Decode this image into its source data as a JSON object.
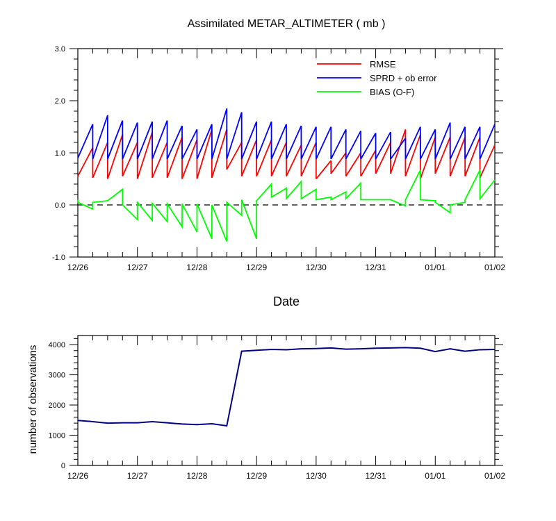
{
  "chart_data": [
    {
      "type": "line",
      "title": "Assimilated METAR_ALTIMETER ( mb )",
      "xlabel": "Date",
      "ylabel": "",
      "xlim": [
        0,
        7
      ],
      "ylim": [
        -1.0,
        3.0
      ],
      "x_tick_labels": [
        "12/26",
        "12/27",
        "12/28",
        "12/29",
        "12/30",
        "12/31",
        "01/01",
        "01/02"
      ],
      "y_tick_labels": [
        "-1.0",
        "0.0",
        "1.0",
        "2.0",
        "3.0"
      ],
      "reference_line_y": 0.0,
      "legend_placement": "top-right",
      "series": [
        {
          "name": "RMSE",
          "color": "#ff0000",
          "segments": [
            [
              0,
              0.55,
              0.25,
              1.1
            ],
            [
              0.25,
              0.52,
              0.5,
              1.2
            ],
            [
              0.5,
              0.5,
              0.75,
              1.35
            ],
            [
              0.75,
              0.55,
              1.0,
              1.2
            ],
            [
              1.0,
              0.5,
              1.25,
              1.4
            ],
            [
              1.25,
              0.52,
              1.5,
              1.2
            ],
            [
              1.5,
              0.52,
              1.75,
              1.3
            ],
            [
              1.75,
              0.5,
              2.0,
              1.25
            ],
            [
              2.0,
              0.5,
              2.25,
              1.45
            ],
            [
              2.25,
              0.52,
              2.5,
              1.45
            ],
            [
              2.5,
              0.68,
              2.75,
              1.2
            ],
            [
              2.75,
              0.55,
              3.0,
              1.25
            ],
            [
              3.0,
              0.55,
              3.25,
              1.25
            ],
            [
              3.25,
              0.55,
              3.5,
              1.2
            ],
            [
              3.5,
              0.55,
              3.75,
              1.15
            ],
            [
              3.75,
              0.55,
              4.0,
              1.2
            ],
            [
              4.0,
              0.5,
              4.25,
              0.85
            ],
            [
              4.25,
              0.6,
              4.5,
              1.0
            ],
            [
              4.5,
              0.55,
              4.75,
              1.0
            ],
            [
              4.75,
              0.55,
              5.0,
              1.05
            ],
            [
              5.0,
              0.6,
              5.25,
              1.2
            ],
            [
              5.25,
              0.6,
              5.5,
              1.45
            ],
            [
              5.5,
              0.55,
              5.75,
              1.35
            ],
            [
              5.75,
              0.5,
              6.0,
              1.3
            ],
            [
              6.0,
              0.6,
              6.25,
              1.3
            ],
            [
              6.25,
              0.55,
              6.5,
              1.3
            ],
            [
              6.5,
              0.55,
              6.75,
              1.3
            ],
            [
              6.75,
              0.52,
              7.0,
              1.15
            ]
          ]
        },
        {
          "name": "SPRD + ob error",
          "color": "#0000ff",
          "segments": [
            [
              0,
              0.9,
              0.25,
              1.55
            ],
            [
              0.25,
              0.88,
              0.5,
              1.72
            ],
            [
              0.5,
              0.88,
              0.75,
              1.62
            ],
            [
              0.75,
              0.88,
              1.0,
              1.58
            ],
            [
              1.0,
              0.88,
              1.25,
              1.6
            ],
            [
              1.25,
              0.88,
              1.5,
              1.62
            ],
            [
              1.5,
              0.88,
              1.75,
              1.52
            ],
            [
              1.75,
              0.88,
              2.0,
              1.45
            ],
            [
              2.0,
              0.88,
              2.25,
              1.55
            ],
            [
              2.25,
              0.88,
              2.5,
              1.85
            ],
            [
              2.5,
              0.88,
              2.75,
              1.78
            ],
            [
              2.75,
              0.88,
              3.0,
              1.6
            ],
            [
              3.0,
              0.88,
              3.25,
              1.6
            ],
            [
              3.25,
              0.88,
              3.5,
              1.55
            ],
            [
              3.5,
              0.88,
              3.75,
              1.52
            ],
            [
              3.75,
              0.88,
              4.0,
              1.5
            ],
            [
              4.0,
              0.88,
              4.25,
              1.5
            ],
            [
              4.25,
              0.88,
              4.5,
              1.45
            ],
            [
              4.5,
              0.88,
              4.75,
              1.42
            ],
            [
              4.75,
              0.88,
              5.0,
              1.38
            ],
            [
              5.0,
              0.88,
              5.25,
              1.4
            ],
            [
              5.25,
              0.88,
              5.5,
              1.28
            ],
            [
              5.5,
              0.88,
              5.75,
              1.5
            ],
            [
              5.75,
              0.88,
              6.0,
              1.45
            ],
            [
              6.0,
              0.88,
              6.25,
              1.58
            ],
            [
              6.25,
              0.88,
              6.5,
              1.5
            ],
            [
              6.5,
              0.88,
              6.75,
              1.5
            ],
            [
              6.75,
              0.88,
              7.0,
              1.55
            ]
          ]
        },
        {
          "name": "BIAS (O-F)",
          "color": "#00ff00",
          "points": [
            [
              0.0,
              0.1
            ],
            [
              0.0,
              0.05
            ],
            [
              0.25,
              -0.08
            ],
            [
              0.25,
              0.05
            ],
            [
              0.5,
              0.08
            ],
            [
              0.75,
              0.3
            ],
            [
              0.75,
              0.0
            ],
            [
              1.0,
              -0.28
            ],
            [
              1.0,
              0.05
            ],
            [
              1.25,
              -0.3
            ],
            [
              1.25,
              0.03
            ],
            [
              1.5,
              -0.32
            ],
            [
              1.5,
              0.02
            ],
            [
              1.75,
              -0.42
            ],
            [
              1.75,
              0.02
            ],
            [
              2.0,
              -0.52
            ],
            [
              2.0,
              0.02
            ],
            [
              2.25,
              -0.65
            ],
            [
              2.25,
              0.0
            ],
            [
              2.5,
              -0.7
            ],
            [
              2.5,
              0.05
            ],
            [
              2.75,
              -0.2
            ],
            [
              2.75,
              0.1
            ],
            [
              3.0,
              -0.65
            ],
            [
              3.0,
              0.08
            ],
            [
              3.25,
              0.4
            ],
            [
              3.25,
              0.15
            ],
            [
              3.5,
              0.32
            ],
            [
              3.5,
              0.12
            ],
            [
              3.75,
              0.45
            ],
            [
              3.75,
              0.12
            ],
            [
              4.0,
              0.3
            ],
            [
              4.0,
              0.1
            ],
            [
              4.25,
              0.15
            ],
            [
              4.25,
              0.1
            ],
            [
              4.5,
              0.25
            ],
            [
              4.5,
              0.12
            ],
            [
              4.75,
              0.42
            ],
            [
              4.75,
              0.1
            ],
            [
              5.0,
              0.1
            ],
            [
              5.25,
              0.1
            ],
            [
              5.5,
              -0.02
            ],
            [
              5.5,
              0.1
            ],
            [
              5.75,
              0.67
            ],
            [
              5.75,
              0.1
            ],
            [
              6.0,
              0.08
            ],
            [
              6.0,
              0.05
            ],
            [
              6.25,
              -0.15
            ],
            [
              6.25,
              0.0
            ],
            [
              6.5,
              0.05
            ],
            [
              6.5,
              0.1
            ],
            [
              6.75,
              0.67
            ],
            [
              6.75,
              0.12
            ],
            [
              7.0,
              0.48
            ]
          ]
        }
      ]
    },
    {
      "type": "line",
      "title": "",
      "xlabel": "",
      "ylabel": "number of observations",
      "xlim": [
        0,
        7
      ],
      "ylim": [
        0,
        4300
      ],
      "x_tick_labels": [
        "12/26",
        "12/27",
        "12/28",
        "12/29",
        "12/30",
        "12/31",
        "01/01",
        "01/02"
      ],
      "y_tick_labels": [
        "0",
        "1000",
        "2000",
        "3000",
        "4000"
      ],
      "series": [
        {
          "name": "",
          "color": "#000080",
          "points": [
            [
              0.0,
              1490
            ],
            [
              0.25,
              1450
            ],
            [
              0.5,
              1400
            ],
            [
              0.75,
              1410
            ],
            [
              1.0,
              1410
            ],
            [
              1.25,
              1450
            ],
            [
              1.5,
              1410
            ],
            [
              1.75,
              1370
            ],
            [
              2.0,
              1350
            ],
            [
              2.25,
              1380
            ],
            [
              2.5,
              1310
            ],
            [
              2.75,
              3780
            ],
            [
              3.0,
              3810
            ],
            [
              3.25,
              3840
            ],
            [
              3.5,
              3830
            ],
            [
              3.75,
              3860
            ],
            [
              4.0,
              3870
            ],
            [
              4.25,
              3890
            ],
            [
              4.5,
              3850
            ],
            [
              4.75,
              3860
            ],
            [
              5.0,
              3880
            ],
            [
              5.25,
              3890
            ],
            [
              5.5,
              3900
            ],
            [
              5.75,
              3880
            ],
            [
              6.0,
              3770
            ],
            [
              6.25,
              3860
            ],
            [
              6.5,
              3780
            ],
            [
              6.75,
              3830
            ],
            [
              7.0,
              3840
            ]
          ]
        }
      ]
    }
  ]
}
